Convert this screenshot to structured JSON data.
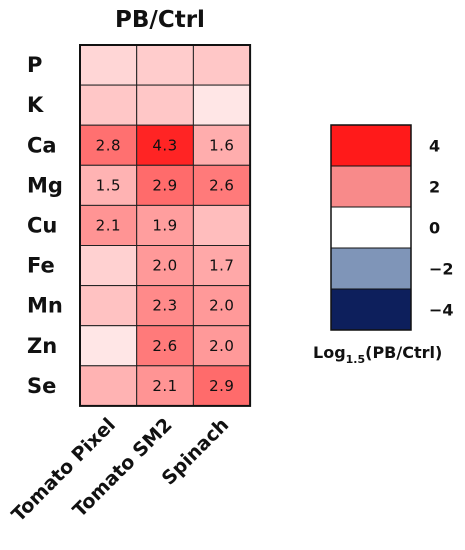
{
  "chart_data": {
    "type": "heatmap",
    "title": "PB/Ctrl",
    "rows": [
      "P",
      "K",
      "Ca",
      "Mg",
      "Cu",
      "Fe",
      "Mn",
      "Zn",
      "Se"
    ],
    "columns": [
      "Tomato Pixel",
      "Tomato SM2",
      "Spinach"
    ],
    "values": [
      [
        0.8,
        1.0,
        1.1
      ],
      [
        1.1,
        1.1,
        0.5
      ],
      [
        2.8,
        4.3,
        1.6
      ],
      [
        1.5,
        2.9,
        2.6
      ],
      [
        2.1,
        1.9,
        1.3
      ],
      [
        0.9,
        2.0,
        1.7
      ],
      [
        1.2,
        2.3,
        2.0
      ],
      [
        0.5,
        2.6,
        2.0
      ],
      [
        1.5,
        2.1,
        2.9
      ]
    ],
    "labels": [
      [
        "",
        "",
        ""
      ],
      [
        "",
        "",
        ""
      ],
      [
        "2.8",
        "4.3",
        "1.6"
      ],
      [
        "1.5",
        "2.9",
        "2.6"
      ],
      [
        "2.1",
        "1.9",
        ""
      ],
      [
        "",
        "2.0",
        "1.7"
      ],
      [
        "",
        "2.3",
        "2.0"
      ],
      [
        "",
        "2.6",
        "2.0"
      ],
      [
        "",
        "2.1",
        "2.9"
      ]
    ],
    "colorscale": {
      "range": [
        -5,
        5
      ],
      "low": "#0d1f5c",
      "mid": "#ffffff",
      "high": "#ff0000"
    },
    "legend": {
      "title_base": "Log",
      "title_sub": "1.5",
      "title_rest": "(PB/Ctrl)",
      "entries": [
        {
          "label": "4",
          "color": "#ff1a1a"
        },
        {
          "label": "2",
          "color": "#f88a8a"
        },
        {
          "label": "0",
          "color": "#ffffff"
        },
        {
          "label": "−2",
          "color": "#7f95b8"
        },
        {
          "label": "−4",
          "color": "#0d1f5c"
        }
      ],
      "placement": "right"
    }
  }
}
